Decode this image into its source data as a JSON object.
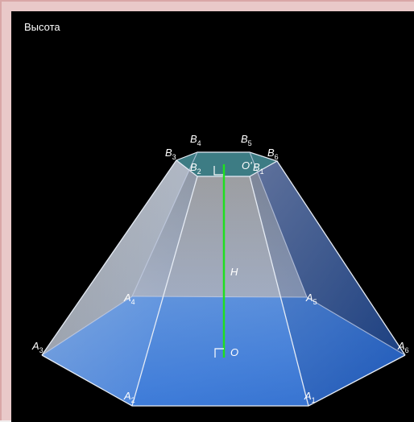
{
  "panel": {
    "title": "Высота"
  },
  "labels": {
    "B4": {
      "base": "B",
      "sub": "4"
    },
    "B5": {
      "base": "B",
      "sub": "5"
    },
    "B3": {
      "base": "B",
      "sub": "3"
    },
    "B6": {
      "base": "B",
      "sub": "6"
    },
    "B2": {
      "base": "B",
      "sub": "2"
    },
    "B1": {
      "base": "B",
      "sub": "1"
    },
    "O_top": "O'",
    "H": "H",
    "A4": {
      "base": "A",
      "sub": "4"
    },
    "A5": {
      "base": "A",
      "sub": "5"
    },
    "A3": {
      "base": "A",
      "sub": "3"
    },
    "A6": {
      "base": "A",
      "sub": "6"
    },
    "O": "O",
    "A2": {
      "base": "A",
      "sub": "2"
    },
    "A1": {
      "base": "A",
      "sub": "1"
    }
  },
  "colors": {
    "height_line": "#1fe01f",
    "edge": "#e6ecf5",
    "base_fill": "#2a6fd6",
    "top_fill": "#3f7f86"
  }
}
